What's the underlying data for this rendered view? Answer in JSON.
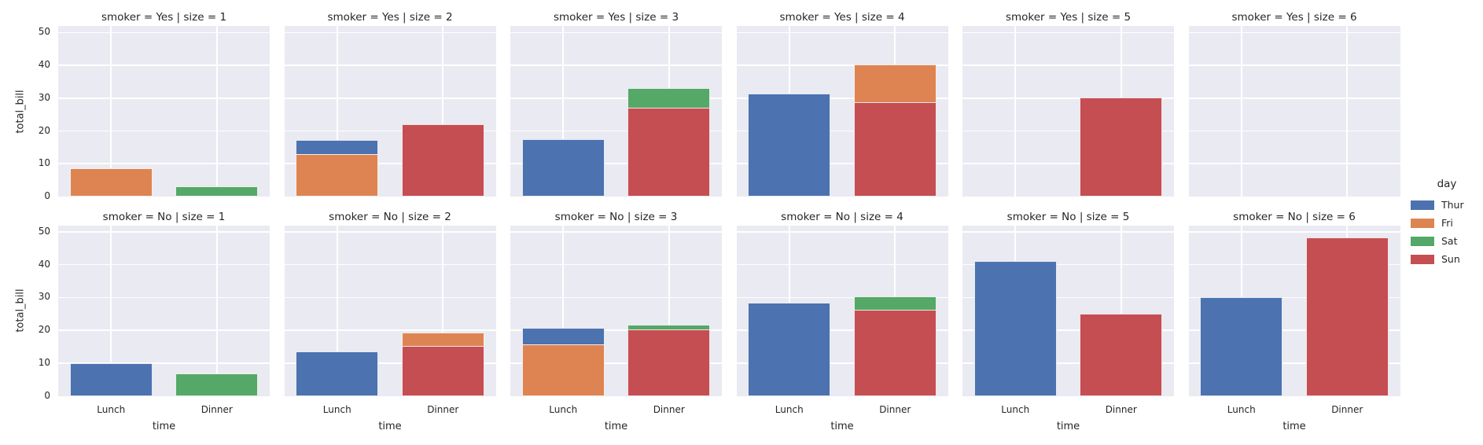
{
  "chart_data": {
    "type": "bar",
    "facet_grid": {
      "row_variable": "smoker",
      "col_variable": "size",
      "row_values": [
        "Yes",
        "No"
      ],
      "col_values": [
        1,
        2,
        3,
        4,
        5,
        6
      ]
    },
    "categories": [
      "Lunch",
      "Dinner"
    ],
    "xlabel": "time",
    "ylabel": "total_bill",
    "ylim": [
      0,
      52
    ],
    "yticks": [
      0,
      10,
      20,
      30,
      40,
      50
    ],
    "grid": "horizontal white gridlines at each ytick plus vertical white gridline at each category center, on light lavender axes background",
    "hue_order": [
      "Thur",
      "Fri",
      "Sat",
      "Sun"
    ],
    "palette": {
      "Thur": "#4c72b0",
      "Fri": "#dd8452",
      "Sat": "#55a868",
      "Sun": "#c44e52"
    },
    "overlap_note": "bars are not dodged; bars of different days overlap at full category width, later day in hue_order drawn in front",
    "legend": {
      "title": "day",
      "position": "right-center",
      "entries": [
        {
          "label": "Thur",
          "color": "#4c72b0"
        },
        {
          "label": "Fri",
          "color": "#dd8452"
        },
        {
          "label": "Sat",
          "color": "#55a868"
        },
        {
          "label": "Sun",
          "color": "#c44e52"
        }
      ]
    },
    "facets": [
      {
        "smoker": "Yes",
        "size": 1,
        "title": "smoker = Yes | size = 1",
        "bars": [
          {
            "x": "Lunch",
            "day": "Fri",
            "value": 8.7
          },
          {
            "x": "Dinner",
            "day": "Sat",
            "value": 3.2
          }
        ]
      },
      {
        "smoker": "Yes",
        "size": 2,
        "title": "smoker = Yes | size = 2",
        "bars": [
          {
            "x": "Lunch",
            "day": "Thur",
            "value": 17.2
          },
          {
            "x": "Lunch",
            "day": "Fri",
            "value": 13.0
          },
          {
            "x": "Dinner",
            "day": "Sun",
            "value": 22.0
          }
        ]
      },
      {
        "smoker": "Yes",
        "size": 3,
        "title": "smoker = Yes | size = 3",
        "bars": [
          {
            "x": "Lunch",
            "day": "Thur",
            "value": 17.5
          },
          {
            "x": "Dinner",
            "day": "Sat",
            "value": 33.0
          },
          {
            "x": "Dinner",
            "day": "Sun",
            "value": 27.0
          }
        ]
      },
      {
        "smoker": "Yes",
        "size": 4,
        "title": "smoker = Yes | size = 4",
        "bars": [
          {
            "x": "Lunch",
            "day": "Thur",
            "value": 31.5
          },
          {
            "x": "Dinner",
            "day": "Fri",
            "value": 40.2
          },
          {
            "x": "Dinner",
            "day": "Sun",
            "value": 28.8
          }
        ]
      },
      {
        "smoker": "Yes",
        "size": 5,
        "title": "smoker = Yes | size = 5",
        "bars": [
          {
            "x": "Dinner",
            "day": "Sun",
            "value": 30.3
          }
        ]
      },
      {
        "smoker": "Yes",
        "size": 6,
        "title": "smoker = Yes | size = 6",
        "bars": []
      },
      {
        "smoker": "No",
        "size": 1,
        "title": "smoker = No | size = 1",
        "bars": [
          {
            "x": "Lunch",
            "day": "Thur",
            "value": 9.9
          },
          {
            "x": "Dinner",
            "day": "Sat",
            "value": 6.8
          }
        ]
      },
      {
        "smoker": "No",
        "size": 2,
        "title": "smoker = No | size = 2",
        "bars": [
          {
            "x": "Lunch",
            "day": "Thur",
            "value": 13.6
          },
          {
            "x": "Dinner",
            "day": "Fri",
            "value": 19.2
          },
          {
            "x": "Dinner",
            "day": "Sun",
            "value": 15.3
          }
        ]
      },
      {
        "smoker": "No",
        "size": 3,
        "title": "smoker = No | size = 3",
        "bars": [
          {
            "x": "Lunch",
            "day": "Thur",
            "value": 20.7
          },
          {
            "x": "Lunch",
            "day": "Fri",
            "value": 15.8
          },
          {
            "x": "Dinner",
            "day": "Sat",
            "value": 21.8
          },
          {
            "x": "Dinner",
            "day": "Sun",
            "value": 20.2
          }
        ]
      },
      {
        "smoker": "No",
        "size": 4,
        "title": "smoker = No | size = 4",
        "bars": [
          {
            "x": "Lunch",
            "day": "Thur",
            "value": 28.4
          },
          {
            "x": "Dinner",
            "day": "Sat",
            "value": 30.4
          },
          {
            "x": "Dinner",
            "day": "Sun",
            "value": 26.2
          }
        ]
      },
      {
        "smoker": "No",
        "size": 5,
        "title": "smoker = No | size = 5",
        "bars": [
          {
            "x": "Lunch",
            "day": "Thur",
            "value": 41.2
          },
          {
            "x": "Dinner",
            "day": "Sun",
            "value": 25.0
          }
        ]
      },
      {
        "smoker": "No",
        "size": 6,
        "title": "smoker = No | size = 6",
        "bars": [
          {
            "x": "Lunch",
            "day": "Thur",
            "value": 30.1
          },
          {
            "x": "Dinner",
            "day": "Sun",
            "value": 48.2
          }
        ]
      }
    ]
  }
}
